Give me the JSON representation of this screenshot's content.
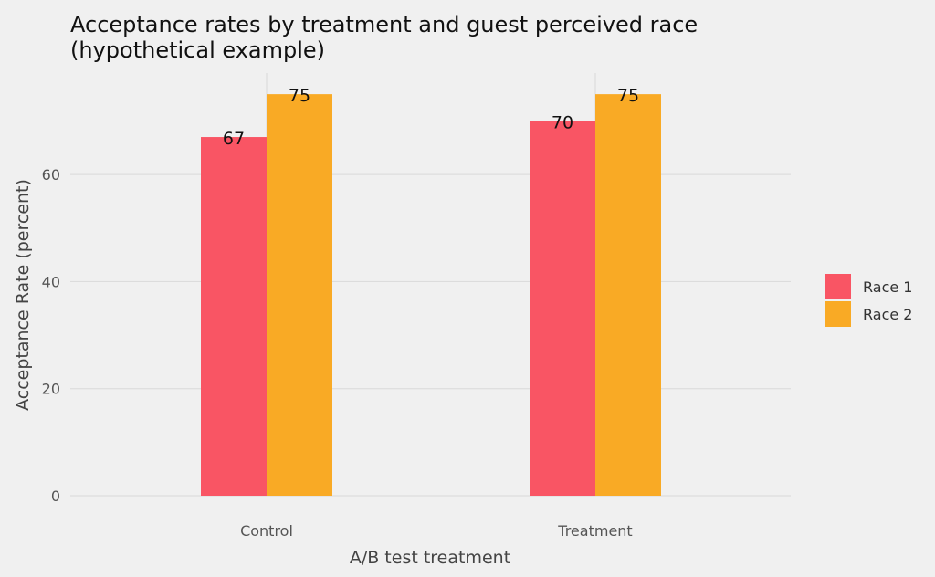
{
  "chart_data": {
    "type": "bar",
    "title": "Acceptance rates by treatment and guest perceived race (hypothetical example)",
    "title_lines": [
      "Acceptance rates by treatment and guest perceived race",
      "(hypothetical example)"
    ],
    "xlabel": "A/B test treatment",
    "ylabel": "Acceptance Rate (percent)",
    "categories": [
      "Control",
      "Treatment"
    ],
    "series": [
      {
        "name": "Race 1",
        "color": "#f95564",
        "values": [
          67,
          70
        ]
      },
      {
        "name": "Race 2",
        "color": "#f9aa25",
        "values": [
          75,
          75
        ]
      }
    ],
    "yticks": [
      0,
      20,
      40,
      60
    ],
    "ylim": [
      0,
      78
    ],
    "grid": true,
    "legend_position": "right",
    "data_labels": true
  }
}
